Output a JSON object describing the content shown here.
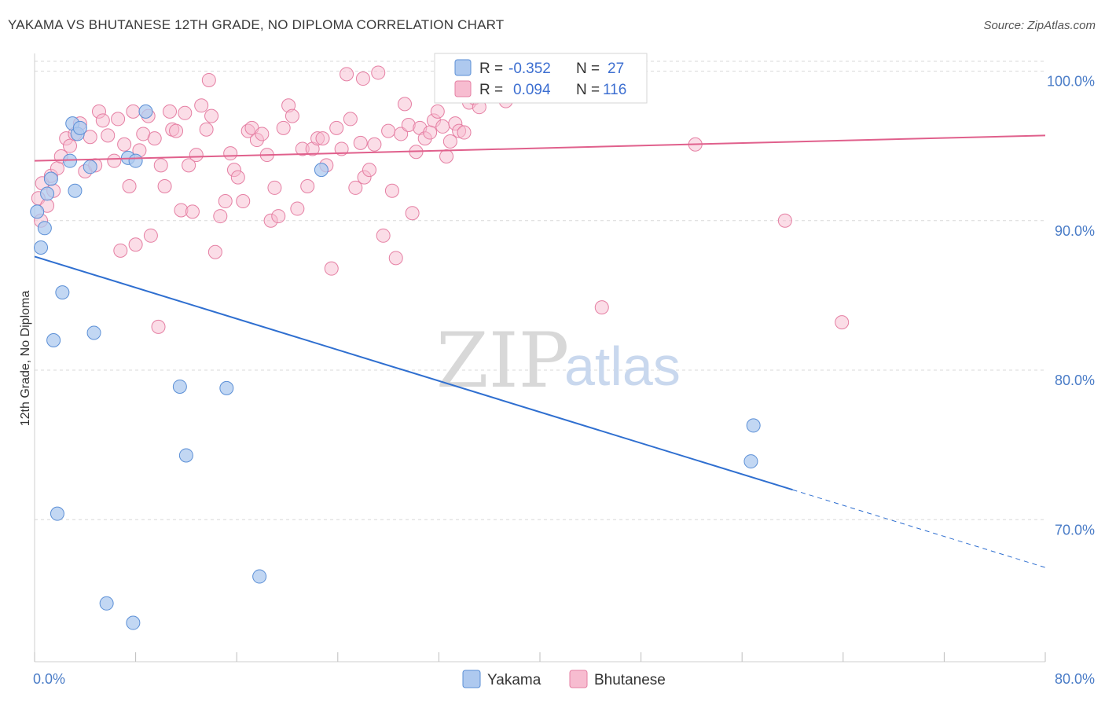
{
  "header": {
    "title": "YAKAMA VS BHUTANESE 12TH GRADE, NO DIPLOMA CORRELATION CHART",
    "source": "Source: ZipAtlas.com"
  },
  "legend_top": {
    "rows": [
      {
        "r_label": "R =",
        "r_value": "-0.352",
        "n_label": "N =",
        "n_value": "27"
      },
      {
        "r_label": "R =",
        "r_value": "0.094",
        "n_label": "N =",
        "n_value": "116"
      }
    ]
  },
  "legend_bottom": {
    "items": [
      "Yakama",
      "Bhutanese"
    ]
  },
  "watermark": {
    "zip": "ZIP",
    "atlas": "atlas"
  },
  "colors": {
    "yakama_fill": "#aec9ef",
    "yakama_stroke": "#5b8fd6",
    "yakama_line": "#2f6fd0",
    "bhutanese_fill": "#f7bcd0",
    "bhutanese_stroke": "#e57fa3",
    "bhutanese_line": "#e0608c",
    "grid": "#d9d9d9",
    "axis_text": "#4a7cc7"
  },
  "chart_data": {
    "type": "scatter",
    "title": "YAKAMA VS BHUTANESE 12TH GRADE, NO DIPLOMA CORRELATION CHART",
    "xlabel": "",
    "ylabel": "12th Grade, No Diploma",
    "xlim": [
      0,
      80
    ],
    "ylim": [
      60.5,
      101.5
    ],
    "x_tick_labels": [
      "0.0%",
      "80.0%"
    ],
    "y_ticks": [
      70,
      80,
      90,
      100
    ],
    "y_tick_labels": [
      "70.0%",
      "80.0%",
      "90.0%",
      "100.0%"
    ],
    "grid": true,
    "legend_position": "top-center",
    "series": [
      {
        "name": "Yakama",
        "r": -0.352,
        "n": 27,
        "trend": {
          "x0": 0,
          "y0": 87.6,
          "x1": 60,
          "y1": 72.0,
          "dashed_to_x": 80,
          "dashed_to_y": 66.8
        },
        "points": [
          [
            0.2,
            90.6
          ],
          [
            0.5,
            88.2
          ],
          [
            0.8,
            89.5
          ],
          [
            1.0,
            91.8
          ],
          [
            1.3,
            92.8
          ],
          [
            1.5,
            82.0
          ],
          [
            1.8,
            70.4
          ],
          [
            2.2,
            85.2
          ],
          [
            2.8,
            94.0
          ],
          [
            3.0,
            96.5
          ],
          [
            3.2,
            92.0
          ],
          [
            3.4,
            95.8
          ],
          [
            3.6,
            96.2
          ],
          [
            4.4,
            93.6
          ],
          [
            4.7,
            82.5
          ],
          [
            5.7,
            64.4
          ],
          [
            7.4,
            94.2
          ],
          [
            7.8,
            63.1
          ],
          [
            8.0,
            94.0
          ],
          [
            8.8,
            97.3
          ],
          [
            11.5,
            78.9
          ],
          [
            12.0,
            74.3
          ],
          [
            15.2,
            78.8
          ],
          [
            17.8,
            66.2
          ],
          [
            22.7,
            93.4
          ],
          [
            56.7,
            73.9
          ],
          [
            56.9,
            76.3
          ]
        ]
      },
      {
        "name": "Bhutanese",
        "r": 0.094,
        "n": 116,
        "trend": {
          "x0": 0,
          "y0": 94.0,
          "x1": 80,
          "y1": 95.7
        },
        "points": [
          [
            0.3,
            91.5
          ],
          [
            0.5,
            90.0
          ],
          [
            0.6,
            92.5
          ],
          [
            1.0,
            91.0
          ],
          [
            1.3,
            93.0
          ],
          [
            1.5,
            92.0
          ],
          [
            1.8,
            93.5
          ],
          [
            2.1,
            94.3
          ],
          [
            2.5,
            95.5
          ],
          [
            2.8,
            95.0
          ],
          [
            3.2,
            95.8
          ],
          [
            3.6,
            96.5
          ],
          [
            4.0,
            93.3
          ],
          [
            4.4,
            95.6
          ],
          [
            4.8,
            93.7
          ],
          [
            5.1,
            97.3
          ],
          [
            5.4,
            96.7
          ],
          [
            5.8,
            95.7
          ],
          [
            6.3,
            94.0
          ],
          [
            6.6,
            96.8
          ],
          [
            6.8,
            88.0
          ],
          [
            7.1,
            95.1
          ],
          [
            7.5,
            92.3
          ],
          [
            7.8,
            97.3
          ],
          [
            8.0,
            88.4
          ],
          [
            8.3,
            94.7
          ],
          [
            8.6,
            95.8
          ],
          [
            9.0,
            97.0
          ],
          [
            9.2,
            89.0
          ],
          [
            9.5,
            95.5
          ],
          [
            9.8,
            82.9
          ],
          [
            10.0,
            93.7
          ],
          [
            10.3,
            92.3
          ],
          [
            10.7,
            97.3
          ],
          [
            10.9,
            96.1
          ],
          [
            11.2,
            96.0
          ],
          [
            11.6,
            90.7
          ],
          [
            11.9,
            97.2
          ],
          [
            12.2,
            93.7
          ],
          [
            12.5,
            90.6
          ],
          [
            12.8,
            94.4
          ],
          [
            13.2,
            97.7
          ],
          [
            13.6,
            96.1
          ],
          [
            14.0,
            97.0
          ],
          [
            14.3,
            87.9
          ],
          [
            14.7,
            90.3
          ],
          [
            15.1,
            91.3
          ],
          [
            15.5,
            94.5
          ],
          [
            15.8,
            93.4
          ],
          [
            16.1,
            92.9
          ],
          [
            16.5,
            91.3
          ],
          [
            16.9,
            96.0
          ],
          [
            17.2,
            96.2
          ],
          [
            17.6,
            95.4
          ],
          [
            18.0,
            95.8
          ],
          [
            18.4,
            94.4
          ],
          [
            18.7,
            90.0
          ],
          [
            19.0,
            92.2
          ],
          [
            19.3,
            90.3
          ],
          [
            19.7,
            96.2
          ],
          [
            20.1,
            97.7
          ],
          [
            20.4,
            97.0
          ],
          [
            20.8,
            90.8
          ],
          [
            21.2,
            94.8
          ],
          [
            21.6,
            92.3
          ],
          [
            22.0,
            94.8
          ],
          [
            22.4,
            95.5
          ],
          [
            22.8,
            95.5
          ],
          [
            23.1,
            93.7
          ],
          [
            23.5,
            86.8
          ],
          [
            23.9,
            96.2
          ],
          [
            24.3,
            94.8
          ],
          [
            24.7,
            99.8
          ],
          [
            25.0,
            96.8
          ],
          [
            25.4,
            92.2
          ],
          [
            25.8,
            95.2
          ],
          [
            26.1,
            92.9
          ],
          [
            26.5,
            93.4
          ],
          [
            26.9,
            95.1
          ],
          [
            27.2,
            99.9
          ],
          [
            27.6,
            89.0
          ],
          [
            28.0,
            96.0
          ],
          [
            28.3,
            92.0
          ],
          [
            28.6,
            87.5
          ],
          [
            29.0,
            95.8
          ],
          [
            29.3,
            97.8
          ],
          [
            29.6,
            96.4
          ],
          [
            29.9,
            90.5
          ],
          [
            30.2,
            94.6
          ],
          [
            30.5,
            96.2
          ],
          [
            30.9,
            95.5
          ],
          [
            31.3,
            95.9
          ],
          [
            31.6,
            96.7
          ],
          [
            31.9,
            97.3
          ],
          [
            32.3,
            96.3
          ],
          [
            32.6,
            94.3
          ],
          [
            32.9,
            95.3
          ],
          [
            33.3,
            96.5
          ],
          [
            33.6,
            96.0
          ],
          [
            34.0,
            95.9
          ],
          [
            34.4,
            97.9
          ],
          [
            34.8,
            98.2
          ],
          [
            35.2,
            97.6
          ],
          [
            35.5,
            98.4
          ],
          [
            35.9,
            98.9
          ],
          [
            36.2,
            99.8
          ],
          [
            36.6,
            99.1
          ],
          [
            36.9,
            98.7
          ],
          [
            37.3,
            98.0
          ],
          [
            37.6,
            98.4
          ],
          [
            13.8,
            99.4
          ],
          [
            26.0,
            99.5
          ],
          [
            44.9,
            84.2
          ],
          [
            52.3,
            95.1
          ],
          [
            59.4,
            90.0
          ],
          [
            63.9,
            83.2
          ]
        ]
      }
    ]
  }
}
